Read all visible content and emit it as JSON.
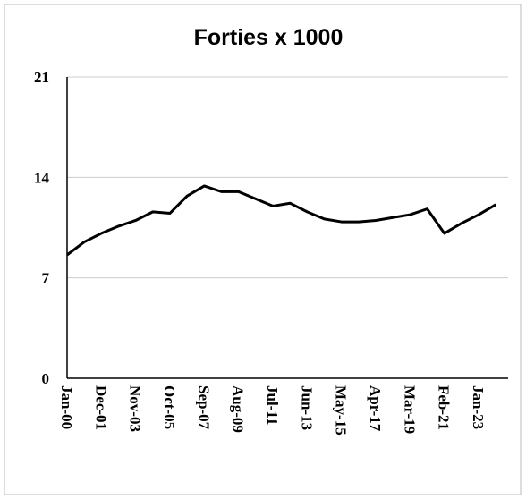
{
  "chart_data": {
    "type": "line",
    "title": "Forties x 1000",
    "categories": [
      "Jan-00",
      null,
      "Dec-01",
      null,
      "Nov-03",
      null,
      "Oct-05",
      null,
      "Sep-07",
      null,
      "Aug-09",
      null,
      "Jul-11",
      null,
      "Jun-13",
      null,
      "May-15",
      null,
      "Apr-17",
      null,
      "Mar-19",
      null,
      "Feb-21",
      null,
      "Jan-23",
      null
    ],
    "series": [
      {
        "name": "Forties",
        "color": "#000000",
        "values": [
          8.6,
          9.5,
          10.1,
          10.6,
          11.0,
          11.6,
          11.5,
          12.7,
          13.4,
          13.0,
          13.0,
          12.5,
          12.0,
          12.2,
          11.6,
          11.1,
          10.9,
          10.9,
          11.0,
          11.2,
          11.4,
          11.8,
          10.1,
          10.8,
          11.4,
          12.1
        ]
      }
    ],
    "ylim": [
      0,
      21
    ],
    "yticks": [
      0,
      7,
      14,
      21
    ],
    "grid": true
  }
}
